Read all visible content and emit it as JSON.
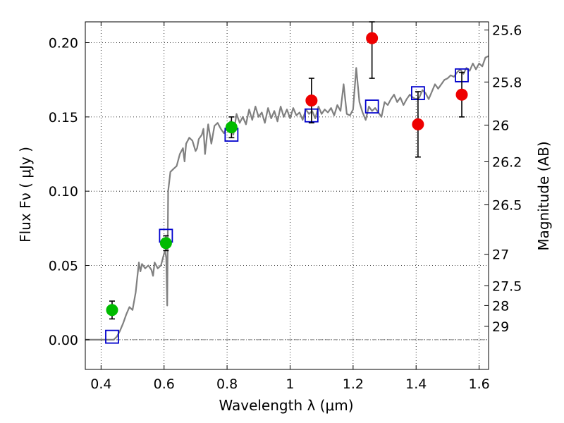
{
  "chart_data": {
    "type": "scatter",
    "xlabel": "Wavelength  λ (μm)",
    "ylabel": "Flux  Fν  ( μJy )",
    "ylabel_right": "Magnitude (AB)",
    "xlim": [
      0.35,
      1.63
    ],
    "ylim": [
      -0.02,
      0.214
    ],
    "grid": true,
    "x_ticks": [
      {
        "value": 0.4,
        "label": "0.4"
      },
      {
        "value": 0.6,
        "label": "0.6"
      },
      {
        "value": 0.8,
        "label": "0.8"
      },
      {
        "value": 1.0,
        "label": "1"
      },
      {
        "value": 1.2,
        "label": "1.2"
      },
      {
        "value": 1.4,
        "label": "1.4"
      },
      {
        "value": 1.6,
        "label": "1.6"
      }
    ],
    "y_ticks": [
      {
        "value": 0.0,
        "label": "0.00"
      },
      {
        "value": 0.05,
        "label": "0.05"
      },
      {
        "value": 0.1,
        "label": "0.10"
      },
      {
        "value": 0.15,
        "label": "0.15"
      },
      {
        "value": 0.2,
        "label": "0.20"
      }
    ],
    "mag_ticks": [
      {
        "value": 0.2085,
        "label": "25.6"
      },
      {
        "value": 0.1735,
        "label": "25.8"
      },
      {
        "value": 0.1445,
        "label": "26"
      },
      {
        "value": 0.1198,
        "label": "26.2"
      },
      {
        "value": 0.0908,
        "label": "26.5"
      },
      {
        "value": 0.0575,
        "label": "27"
      },
      {
        "value": 0.0363,
        "label": "27.5"
      },
      {
        "value": 0.023,
        "label": "28"
      },
      {
        "value": 0.009,
        "label": "29"
      }
    ],
    "model_spectrum": {
      "name": "model spectrum",
      "color": "#808080",
      "x": [
        0.35,
        0.43,
        0.44,
        0.45,
        0.46,
        0.47,
        0.48,
        0.49,
        0.5,
        0.51,
        0.52,
        0.525,
        0.53,
        0.54,
        0.55,
        0.56,
        0.565,
        0.57,
        0.58,
        0.59,
        0.595,
        0.6,
        0.603,
        0.607,
        0.61,
        0.613,
        0.62,
        0.63,
        0.64,
        0.65,
        0.66,
        0.665,
        0.67,
        0.68,
        0.69,
        0.7,
        0.705,
        0.71,
        0.72,
        0.725,
        0.73,
        0.74,
        0.75,
        0.76,
        0.77,
        0.78,
        0.79,
        0.8,
        0.81,
        0.82,
        0.83,
        0.84,
        0.85,
        0.86,
        0.87,
        0.88,
        0.89,
        0.9,
        0.91,
        0.92,
        0.93,
        0.94,
        0.95,
        0.96,
        0.97,
        0.98,
        0.99,
        1.0,
        1.01,
        1.02,
        1.03,
        1.04,
        1.05,
        1.06,
        1.07,
        1.08,
        1.09,
        1.1,
        1.11,
        1.12,
        1.13,
        1.14,
        1.15,
        1.16,
        1.17,
        1.18,
        1.19,
        1.2,
        1.21,
        1.22,
        1.23,
        1.24,
        1.25,
        1.26,
        1.27,
        1.28,
        1.29,
        1.3,
        1.31,
        1.32,
        1.33,
        1.34,
        1.35,
        1.36,
        1.37,
        1.38,
        1.39,
        1.4,
        1.41,
        1.42,
        1.43,
        1.44,
        1.45,
        1.46,
        1.47,
        1.48,
        1.49,
        1.5,
        1.51,
        1.52,
        1.53,
        1.54,
        1.55,
        1.56,
        1.57,
        1.58,
        1.59,
        1.6,
        1.61,
        1.62,
        1.63
      ],
      "y": [
        0.0,
        0.0,
        0.0,
        0.002,
        0.006,
        0.011,
        0.017,
        0.022,
        0.02,
        0.032,
        0.052,
        0.046,
        0.051,
        0.048,
        0.05,
        0.047,
        0.043,
        0.052,
        0.048,
        0.05,
        0.054,
        0.058,
        0.06,
        0.055,
        0.023,
        0.1,
        0.113,
        0.115,
        0.117,
        0.125,
        0.129,
        0.12,
        0.132,
        0.136,
        0.134,
        0.127,
        0.129,
        0.135,
        0.138,
        0.142,
        0.125,
        0.145,
        0.132,
        0.144,
        0.146,
        0.142,
        0.139,
        0.143,
        0.147,
        0.138,
        0.152,
        0.146,
        0.15,
        0.145,
        0.155,
        0.148,
        0.157,
        0.15,
        0.153,
        0.146,
        0.156,
        0.149,
        0.154,
        0.147,
        0.157,
        0.15,
        0.155,
        0.149,
        0.156,
        0.151,
        0.153,
        0.148,
        0.155,
        0.152,
        0.154,
        0.149,
        0.157,
        0.152,
        0.155,
        0.153,
        0.156,
        0.151,
        0.158,
        0.154,
        0.172,
        0.152,
        0.151,
        0.155,
        0.183,
        0.16,
        0.153,
        0.148,
        0.157,
        0.154,
        0.156,
        0.153,
        0.15,
        0.16,
        0.158,
        0.162,
        0.165,
        0.16,
        0.163,
        0.158,
        0.162,
        0.165,
        0.163,
        0.162,
        0.163,
        0.168,
        0.166,
        0.162,
        0.167,
        0.172,
        0.169,
        0.172,
        0.175,
        0.176,
        0.178,
        0.177,
        0.18,
        0.182,
        0.179,
        0.183,
        0.181,
        0.186,
        0.182,
        0.186,
        0.184,
        0.19,
        0.191
      ]
    },
    "series": [
      {
        "name": "model photometry",
        "marker": "open-square",
        "color": "#0000cc",
        "x": [
          0.435,
          0.606,
          0.814,
          1.068,
          1.26,
          1.406,
          1.545
        ],
        "y": [
          0.002,
          0.07,
          0.138,
          0.151,
          0.157,
          0.166,
          0.178
        ],
        "err": [
          null,
          null,
          null,
          null,
          null,
          null,
          null
        ]
      },
      {
        "name": "optical photometry",
        "marker": "filled-circle",
        "color": "#00bb00",
        "x": [
          0.435,
          0.606,
          0.814
        ],
        "y": [
          0.02,
          0.065,
          0.143
        ],
        "err": [
          0.006,
          0.005,
          0.007
        ]
      },
      {
        "name": "near-IR photometry",
        "marker": "filled-circle",
        "color": "#ee0000",
        "x": [
          1.068,
          1.26,
          1.406,
          1.545
        ],
        "y": [
          0.161,
          0.203,
          0.145,
          0.165
        ],
        "err": [
          0.015,
          0.027,
          0.022,
          0.015
        ]
      }
    ]
  }
}
